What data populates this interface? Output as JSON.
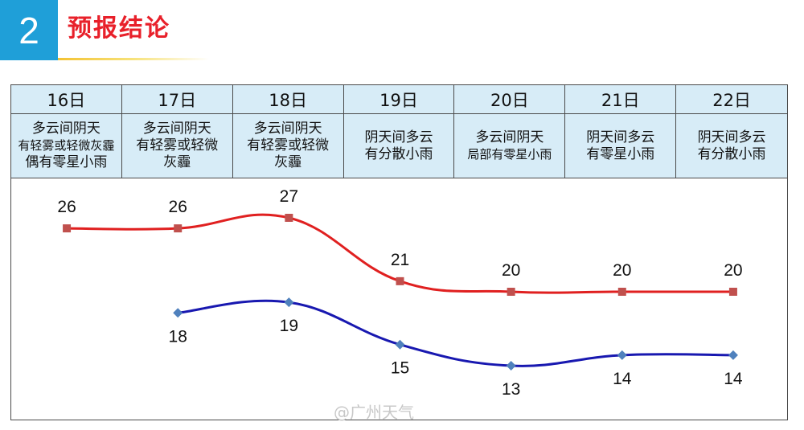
{
  "header": {
    "section_number": "2",
    "title": "预报结论"
  },
  "days": [
    {
      "date": "16日",
      "weather": [
        "多云间阴天",
        "有轻雾或轻微灰霾",
        "偶有零星小雨"
      ]
    },
    {
      "date": "17日",
      "weather": [
        "多云间阴天",
        "有轻雾或轻微",
        "灰霾"
      ]
    },
    {
      "date": "18日",
      "weather": [
        "多云间阴天",
        "有轻雾或轻微",
        "灰霾"
      ]
    },
    {
      "date": "19日",
      "weather": [
        "阴天间多云",
        "有分散小雨"
      ]
    },
    {
      "date": "20日",
      "weather": [
        "多云间阴天",
        "局部有零星小雨"
      ]
    },
    {
      "date": "21日",
      "weather": [
        "阴天间多云",
        "有零星小雨"
      ]
    },
    {
      "date": "22日",
      "weather": [
        "阴天间多云",
        "有分散小雨"
      ]
    }
  ],
  "chart_data": {
    "type": "line",
    "categories": [
      "16日",
      "17日",
      "18日",
      "19日",
      "20日",
      "21日",
      "22日"
    ],
    "series": [
      {
        "values": [
          26,
          26,
          27,
          21,
          20,
          20,
          20
        ],
        "color": "#e02020",
        "marker": "square"
      },
      {
        "values": [
          null,
          18,
          19,
          15,
          13,
          14,
          14
        ],
        "color": "#1818b0",
        "marker": "diamond"
      }
    ],
    "ylim": [
      10,
      29
    ]
  },
  "watermark": "@广州天气"
}
